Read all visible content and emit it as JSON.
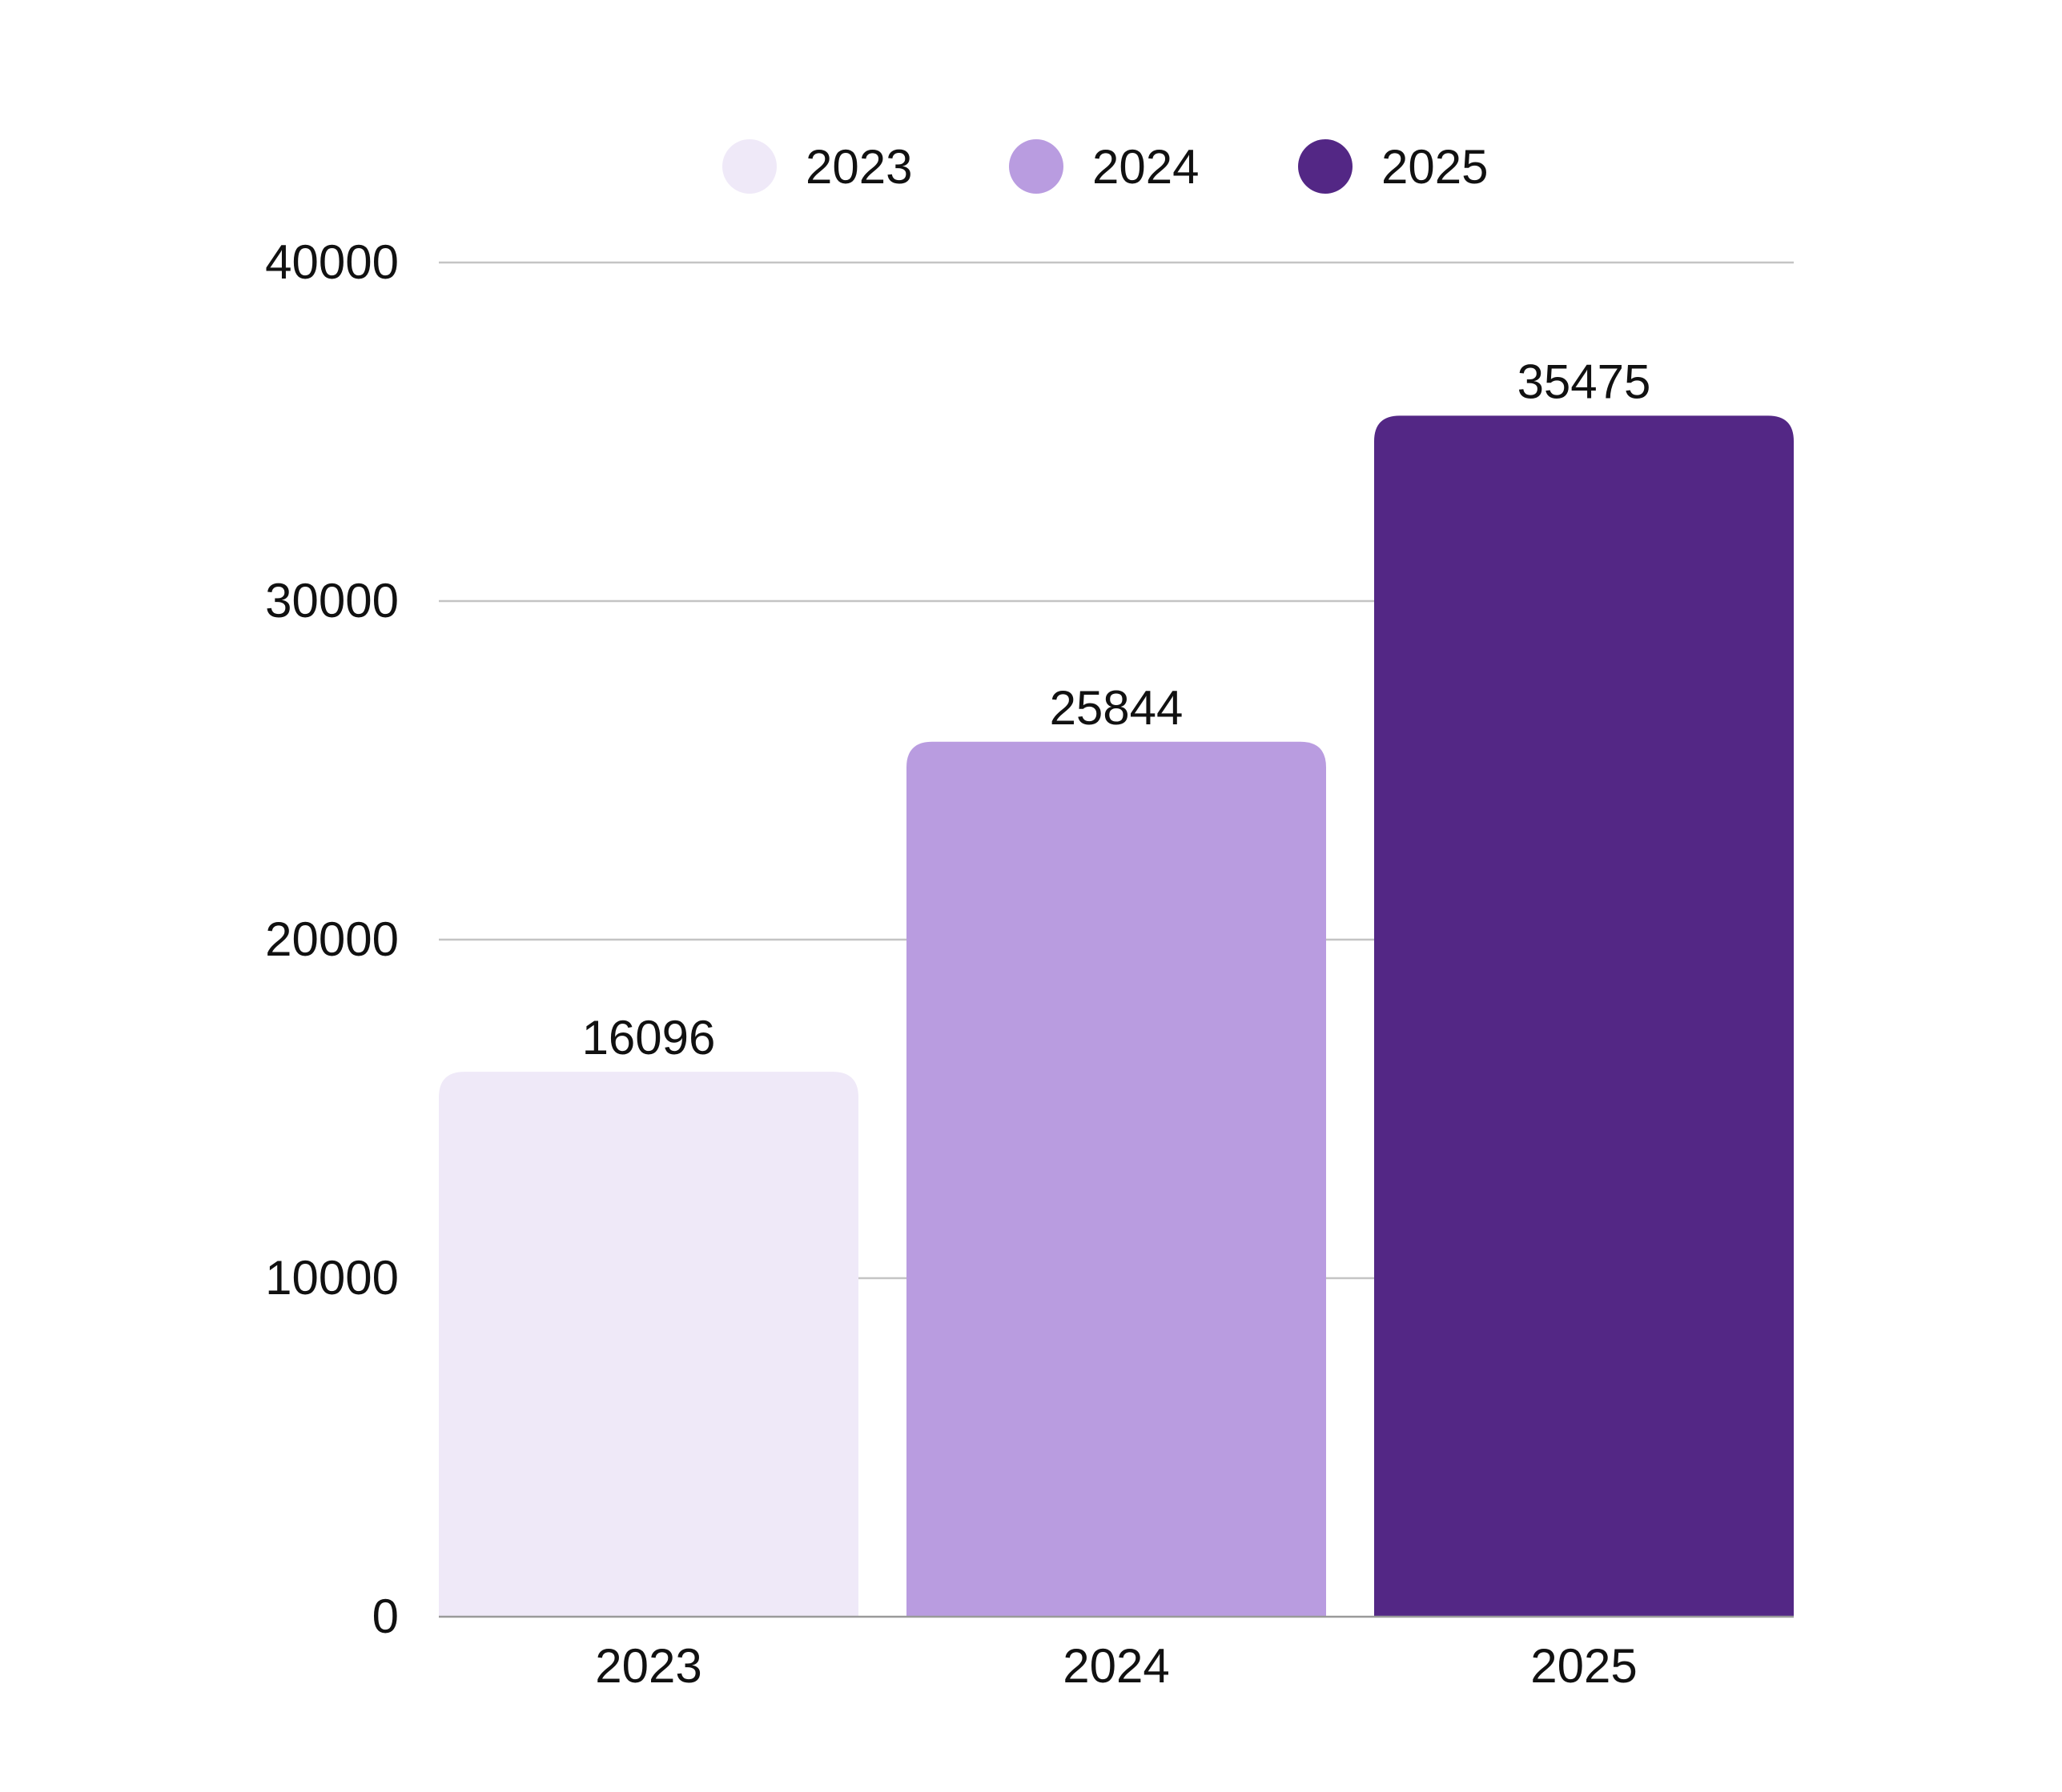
{
  "chart_data": {
    "type": "bar",
    "categories": [
      "2023",
      "2024",
      "2025"
    ],
    "values": [
      16096,
      25844,
      35475
    ],
    "colors": [
      "#efe9f8",
      "#b99ce0",
      "#532785"
    ],
    "legend": {
      "position": "top",
      "items": [
        {
          "label": "2023",
          "color": "#efe9f8"
        },
        {
          "label": "2024",
          "color": "#b99ce0"
        },
        {
          "label": "2025",
          "color": "#532785"
        }
      ]
    },
    "y_ticks": [
      0,
      10000,
      20000,
      30000,
      40000
    ],
    "ylim": [
      0,
      40000
    ],
    "grid": true,
    "data_labels": true,
    "title": "",
    "xlabel": "",
    "ylabel": ""
  }
}
